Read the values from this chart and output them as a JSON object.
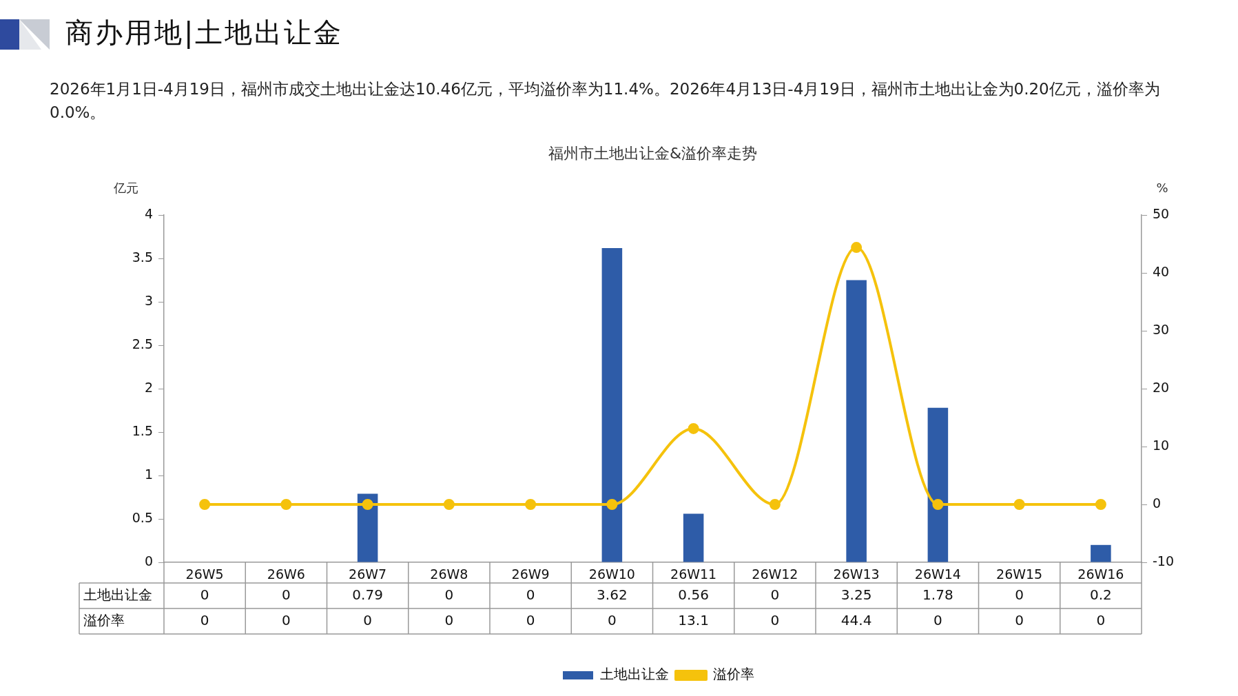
{
  "chart_data": {
    "type": "bar",
    "subtitle": "商办用地|土地出让金",
    "title": "福州市土地出让金&溢价率走势",
    "annotations": [
      "2026年1月1日-4月19日，福州市成交土地出让金达10.46亿元，平均溢价率为11.4%。2026年4月13日-4月19日，福州市土地出让金为0.20亿元，溢价率为0.0%。"
    ],
    "ylabel": "亿元",
    "y2label": "%",
    "categories": [
      "26W5",
      "26W6",
      "26W7",
      "26W8",
      "26W9",
      "26W10",
      "26W11",
      "26W12",
      "26W13",
      "26W14",
      "26W15",
      "26W16"
    ],
    "series": [
      {
        "name": "土地出让金",
        "color": "#2e5ca8",
        "values": [
          0,
          0,
          0.79,
          0,
          0,
          3.62,
          0.56,
          0,
          3.25,
          1.78,
          0,
          0.2
        ]
      },
      {
        "name": "溢价率",
        "type": "line",
        "axis": "y2",
        "color": "#f5c20c",
        "marker": "circle",
        "values": [
          0,
          0,
          0,
          0,
          0,
          0,
          13.1,
          0,
          44.4,
          0,
          0,
          0
        ]
      }
    ],
    "ylim": [
      0,
      4
    ],
    "yticks": [
      0,
      0.5,
      1,
      1.5,
      2,
      2.5,
      3,
      3.5,
      4
    ],
    "y2lim": [
      -10,
      50
    ],
    "y2ticks": [
      -10,
      0,
      10,
      20,
      30,
      40,
      50
    ],
    "grid": false,
    "legend": "bottom",
    "data_labels": true
  }
}
